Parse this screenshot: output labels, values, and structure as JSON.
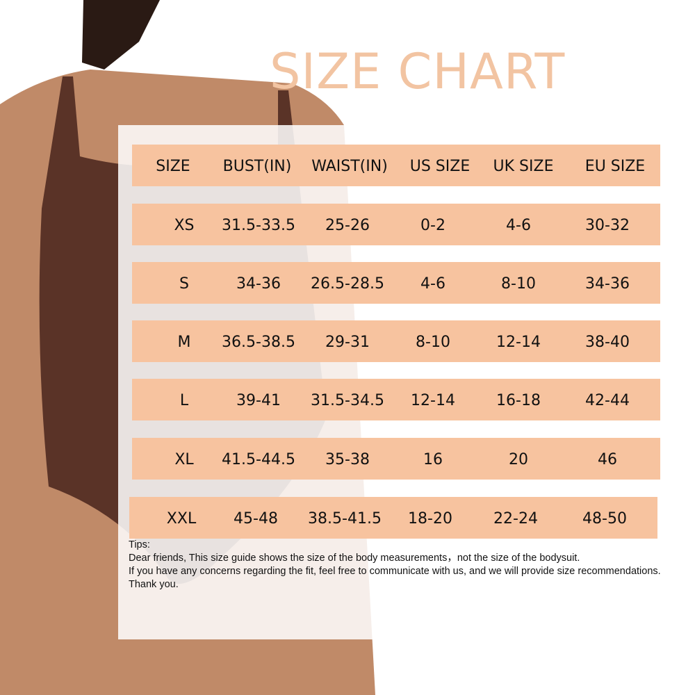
{
  "title": "SIZE CHART",
  "colors": {
    "title": "#f2c4a2",
    "row_fill": "#f7c39f",
    "bodysuit": "#5a3327",
    "skin": "#b98161"
  },
  "table": {
    "headers": [
      "SIZE",
      "BUST(IN)",
      "WAIST(IN)",
      "US SIZE",
      "UK SIZE",
      "EU SIZE"
    ],
    "rows": [
      [
        "XS",
        "31.5-33.5",
        "25-26",
        "0-2",
        "4-6",
        "30-32"
      ],
      [
        "S",
        "34-36",
        "26.5-28.5",
        "4-6",
        "8-10",
        "34-36"
      ],
      [
        "M",
        "36.5-38.5",
        "29-31",
        "8-10",
        "12-14",
        "38-40"
      ],
      [
        "L",
        "39-41",
        "31.5-34.5",
        "12-14",
        "16-18",
        "42-44"
      ],
      [
        "XL",
        "41.5-44.5",
        "35-38",
        "16",
        "20",
        "46"
      ],
      [
        "XXL",
        "45-48",
        "38.5-41.5",
        "18-20",
        "22-24",
        "48-50"
      ]
    ]
  },
  "tips": {
    "label": "Tips:",
    "line1": "Dear friends, This size guide shows the size of the body measurements，not the size of the bodysuit.",
    "line2": "If you have any concerns regarding the fit, feel free to communicate with us, and we will provide size recommendations. Thank you."
  }
}
